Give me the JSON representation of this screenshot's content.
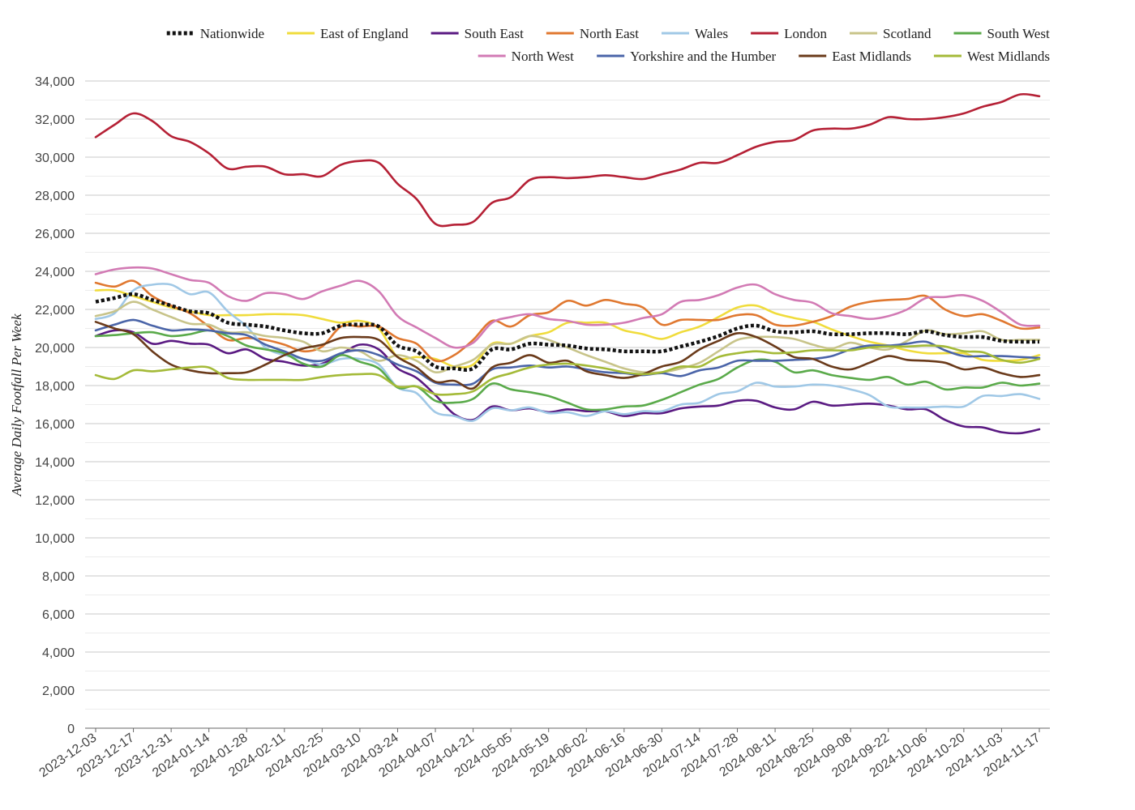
{
  "chart_data": {
    "type": "line",
    "title": "",
    "ylabel": "Average Daily Footfall Per Week",
    "xlabel": "",
    "ylim": [
      0,
      34000
    ],
    "y_tick_step": 2000,
    "y_ticks": [
      "0",
      "2,000",
      "4,000",
      "6,000",
      "8,000",
      "10,000",
      "12,000",
      "14,000",
      "16,000",
      "18,000",
      "20,000",
      "22,000",
      "24,000",
      "26,000",
      "28,000",
      "30,000",
      "32,000",
      "34,000"
    ],
    "grid": true,
    "legend_position": "top",
    "x": [
      "2023-12-03",
      "2023-12-10",
      "2023-12-17",
      "2023-12-24",
      "2023-12-31",
      "2024-01-07",
      "2024-01-14",
      "2024-01-21",
      "2024-01-28",
      "2024-02-04",
      "2024-02-11",
      "2024-02-18",
      "2024-02-25",
      "2024-03-03",
      "2024-03-10",
      "2024-03-17",
      "2024-03-24",
      "2024-03-31",
      "2024-04-07",
      "2024-04-14",
      "2024-04-21",
      "2024-04-28",
      "2024-05-05",
      "2024-05-12",
      "2024-05-19",
      "2024-05-26",
      "2024-06-02",
      "2024-06-09",
      "2024-06-16",
      "2024-06-23",
      "2024-06-30",
      "2024-07-07",
      "2024-07-14",
      "2024-07-21",
      "2024-07-28",
      "2024-08-04",
      "2024-08-11",
      "2024-08-18",
      "2024-08-25",
      "2024-09-01",
      "2024-09-08",
      "2024-09-15",
      "2024-09-22",
      "2024-09-29",
      "2024-10-06",
      "2024-10-13",
      "2024-10-20",
      "2024-10-27",
      "2024-11-03",
      "2024-11-10",
      "2024-11-17"
    ],
    "x_tick_labels": [
      "2023-12-03",
      "2023-12-17",
      "2023-12-31",
      "2024-01-14",
      "2024-01-28",
      "2024-02-11",
      "2024-02-25",
      "2024-03-10",
      "2024-03-24",
      "2024-04-07",
      "2024-04-21",
      "2024-05-05",
      "2024-05-19",
      "2024-06-02",
      "2024-06-16",
      "2024-06-30",
      "2024-07-14",
      "2024-07-28",
      "2024-08-11",
      "2024-08-25",
      "2024-09-08",
      "2024-09-22",
      "2024-10-06",
      "2024-10-20",
      "2024-11-03",
      "2024-11-17"
    ],
    "series": [
      {
        "name": "Nationwide",
        "color": "#111111",
        "dash": true,
        "values": [
          22400,
          22600,
          22800,
          22500,
          22200,
          21900,
          21800,
          21300,
          21200,
          21100,
          20900,
          20750,
          20750,
          21150,
          21200,
          21100,
          20100,
          19800,
          19000,
          18900,
          18900,
          19900,
          19900,
          20200,
          20150,
          20100,
          19950,
          19900,
          19800,
          19800,
          19800,
          20050,
          20300,
          20600,
          21000,
          21150,
          20850,
          20800,
          20850,
          20700,
          20700,
          20750,
          20750,
          20700,
          20850,
          20650,
          20550,
          20550,
          20350,
          20300,
          20300
        ]
      },
      {
        "name": "East of England",
        "color": "#f0dc3c",
        "values": [
          23000,
          23000,
          22700,
          22400,
          22100,
          21900,
          21700,
          21700,
          21700,
          21750,
          21750,
          21700,
          21500,
          21300,
          21400,
          21000,
          19500,
          19500,
          19400,
          19000,
          19100,
          20200,
          20200,
          20600,
          20800,
          21300,
          21300,
          21300,
          20900,
          20700,
          20450,
          20800,
          21100,
          21600,
          22100,
          22200,
          21800,
          21550,
          21350,
          20950,
          20600,
          20300,
          20100,
          19850,
          19700,
          19700,
          19700,
          19350,
          19300,
          19350,
          19600
        ]
      },
      {
        "name": "South East",
        "color": "#5a1a82",
        "values": [
          20600,
          20900,
          20800,
          20200,
          20350,
          20200,
          20150,
          19700,
          19900,
          19400,
          19250,
          19050,
          19150,
          19650,
          20150,
          19900,
          18900,
          18400,
          17500,
          16500,
          16200,
          16900,
          16700,
          16800,
          16600,
          16750,
          16650,
          16650,
          16400,
          16550,
          16550,
          16800,
          16900,
          16950,
          17200,
          17200,
          16850,
          16750,
          17150,
          16950,
          17000,
          17050,
          16950,
          16750,
          16750,
          16200,
          15850,
          15800,
          15550,
          15500,
          15700
        ]
      },
      {
        "name": "North East",
        "color": "#e07830",
        "values": [
          23400,
          23200,
          23500,
          22700,
          22200,
          21800,
          21100,
          20400,
          20500,
          20400,
          20150,
          19800,
          20050,
          21100,
          21100,
          21100,
          20500,
          20200,
          19300,
          19600,
          20400,
          21400,
          21100,
          21700,
          21850,
          22450,
          22200,
          22500,
          22300,
          22100,
          21200,
          21450,
          21450,
          21450,
          21700,
          21700,
          21200,
          21150,
          21350,
          21650,
          22150,
          22400,
          22500,
          22550,
          22700,
          22000,
          21650,
          21750,
          21400,
          21000,
          21050
        ]
      },
      {
        "name": "Wales",
        "color": "#a0c8e6",
        "values": [
          21500,
          21800,
          23000,
          23300,
          23300,
          22800,
          22900,
          21900,
          21100,
          20000,
          19600,
          19400,
          19100,
          19400,
          19400,
          19100,
          17900,
          17600,
          16600,
          16400,
          16150,
          16800,
          16700,
          16850,
          16550,
          16600,
          16400,
          16650,
          16500,
          16650,
          16650,
          17000,
          17100,
          17550,
          17700,
          18150,
          17950,
          17950,
          18050,
          18000,
          17800,
          17500,
          16900,
          16850,
          16850,
          16900,
          16900,
          17450,
          17450,
          17550,
          17300
        ]
      },
      {
        "name": "London",
        "color": "#b52035",
        "values": [
          31050,
          31700,
          32300,
          31900,
          31100,
          30800,
          30200,
          29400,
          29500,
          29500,
          29100,
          29100,
          29000,
          29600,
          29800,
          29700,
          28600,
          27800,
          26500,
          26450,
          26600,
          27600,
          27900,
          28800,
          28950,
          28900,
          28950,
          29050,
          28950,
          28850,
          29100,
          29350,
          29700,
          29700,
          30100,
          30550,
          30800,
          30900,
          31400,
          31500,
          31500,
          31700,
          32100,
          32000,
          32000,
          32100,
          32300,
          32650,
          32900,
          33300,
          33200
        ]
      },
      {
        "name": "Scotland",
        "color": "#c8c48a",
        "values": [
          21650,
          21900,
          22400,
          22000,
          21600,
          21250,
          21200,
          20800,
          20800,
          20600,
          20500,
          20300,
          19800,
          20000,
          19800,
          19300,
          19600,
          19300,
          18700,
          19000,
          19350,
          20150,
          20200,
          20600,
          20400,
          20000,
          19600,
          19250,
          18900,
          18700,
          18700,
          18900,
          19200,
          19800,
          20400,
          20550,
          20550,
          20450,
          20150,
          19950,
          20250,
          20000,
          19900,
          20350,
          20900,
          20700,
          20750,
          20850,
          20400,
          20400,
          20400
        ]
      },
      {
        "name": "South West",
        "color": "#5aaa4a",
        "values": [
          20600,
          20650,
          20750,
          20800,
          20600,
          20700,
          20900,
          20600,
          20100,
          19900,
          19700,
          19150,
          19000,
          19600,
          19250,
          18900,
          17900,
          17950,
          17200,
          17100,
          17300,
          18100,
          17800,
          17650,
          17450,
          17100,
          16750,
          16750,
          16900,
          16950,
          17250,
          17650,
          18050,
          18350,
          18950,
          19350,
          19250,
          18700,
          18800,
          18550,
          18400,
          18300,
          18450,
          18050,
          18200,
          17800,
          17900,
          17900,
          18150,
          18000,
          18100
        ]
      },
      {
        "name": "North West",
        "color": "#d27ab4",
        "values": [
          23850,
          24100,
          24200,
          24150,
          23850,
          23550,
          23400,
          22700,
          22450,
          22850,
          22800,
          22550,
          22950,
          23250,
          23500,
          22950,
          21650,
          21050,
          20500,
          20000,
          20250,
          21300,
          21600,
          21750,
          21500,
          21400,
          21200,
          21200,
          21300,
          21550,
          21750,
          22400,
          22500,
          22750,
          23150,
          23300,
          22800,
          22500,
          22350,
          21800,
          21650,
          21500,
          21650,
          22000,
          22600,
          22650,
          22750,
          22450,
          21850,
          21200,
          21150
        ]
      },
      {
        "name": "Yorkshire and the Humber",
        "color": "#4a64a8",
        "values": [
          20900,
          21200,
          21450,
          21150,
          20900,
          20950,
          20900,
          20750,
          20650,
          20150,
          19800,
          19400,
          19300,
          19700,
          19850,
          19600,
          19100,
          18750,
          18150,
          18050,
          18100,
          18850,
          18950,
          19050,
          18950,
          19000,
          18850,
          18700,
          18650,
          18550,
          18650,
          18500,
          18800,
          18950,
          19300,
          19300,
          19300,
          19350,
          19400,
          19550,
          19900,
          20100,
          20100,
          20200,
          20300,
          19850,
          19550,
          19550,
          19550,
          19500,
          19450
        ]
      },
      {
        "name": "East Midlands",
        "color": "#6a3a1a",
        "values": [
          21350,
          21000,
          20700,
          19800,
          19100,
          18800,
          18650,
          18650,
          18700,
          19100,
          19600,
          19950,
          20150,
          20500,
          20550,
          20400,
          19500,
          18950,
          18200,
          18250,
          17850,
          18950,
          19200,
          19600,
          19200,
          19300,
          18750,
          18550,
          18400,
          18600,
          19000,
          19250,
          19900,
          20350,
          20750,
          20550,
          20050,
          19500,
          19400,
          19000,
          18850,
          19200,
          19550,
          19350,
          19300,
          19200,
          18850,
          18950,
          18650,
          18450,
          18550
        ]
      },
      {
        "name": "West Midlands",
        "color": "#a4ba38",
        "values": [
          18550,
          18350,
          18800,
          18750,
          18850,
          18950,
          18950,
          18400,
          18300,
          18300,
          18300,
          18300,
          18450,
          18550,
          18600,
          18550,
          17950,
          17950,
          17550,
          17550,
          17700,
          18350,
          18650,
          18950,
          19100,
          19150,
          19050,
          18900,
          18700,
          18600,
          18700,
          19000,
          19000,
          19500,
          19700,
          19800,
          19700,
          19750,
          19850,
          19850,
          19850,
          20000,
          20050,
          20050,
          20100,
          20050,
          19800,
          19750,
          19350,
          19200,
          19400
        ]
      }
    ]
  }
}
